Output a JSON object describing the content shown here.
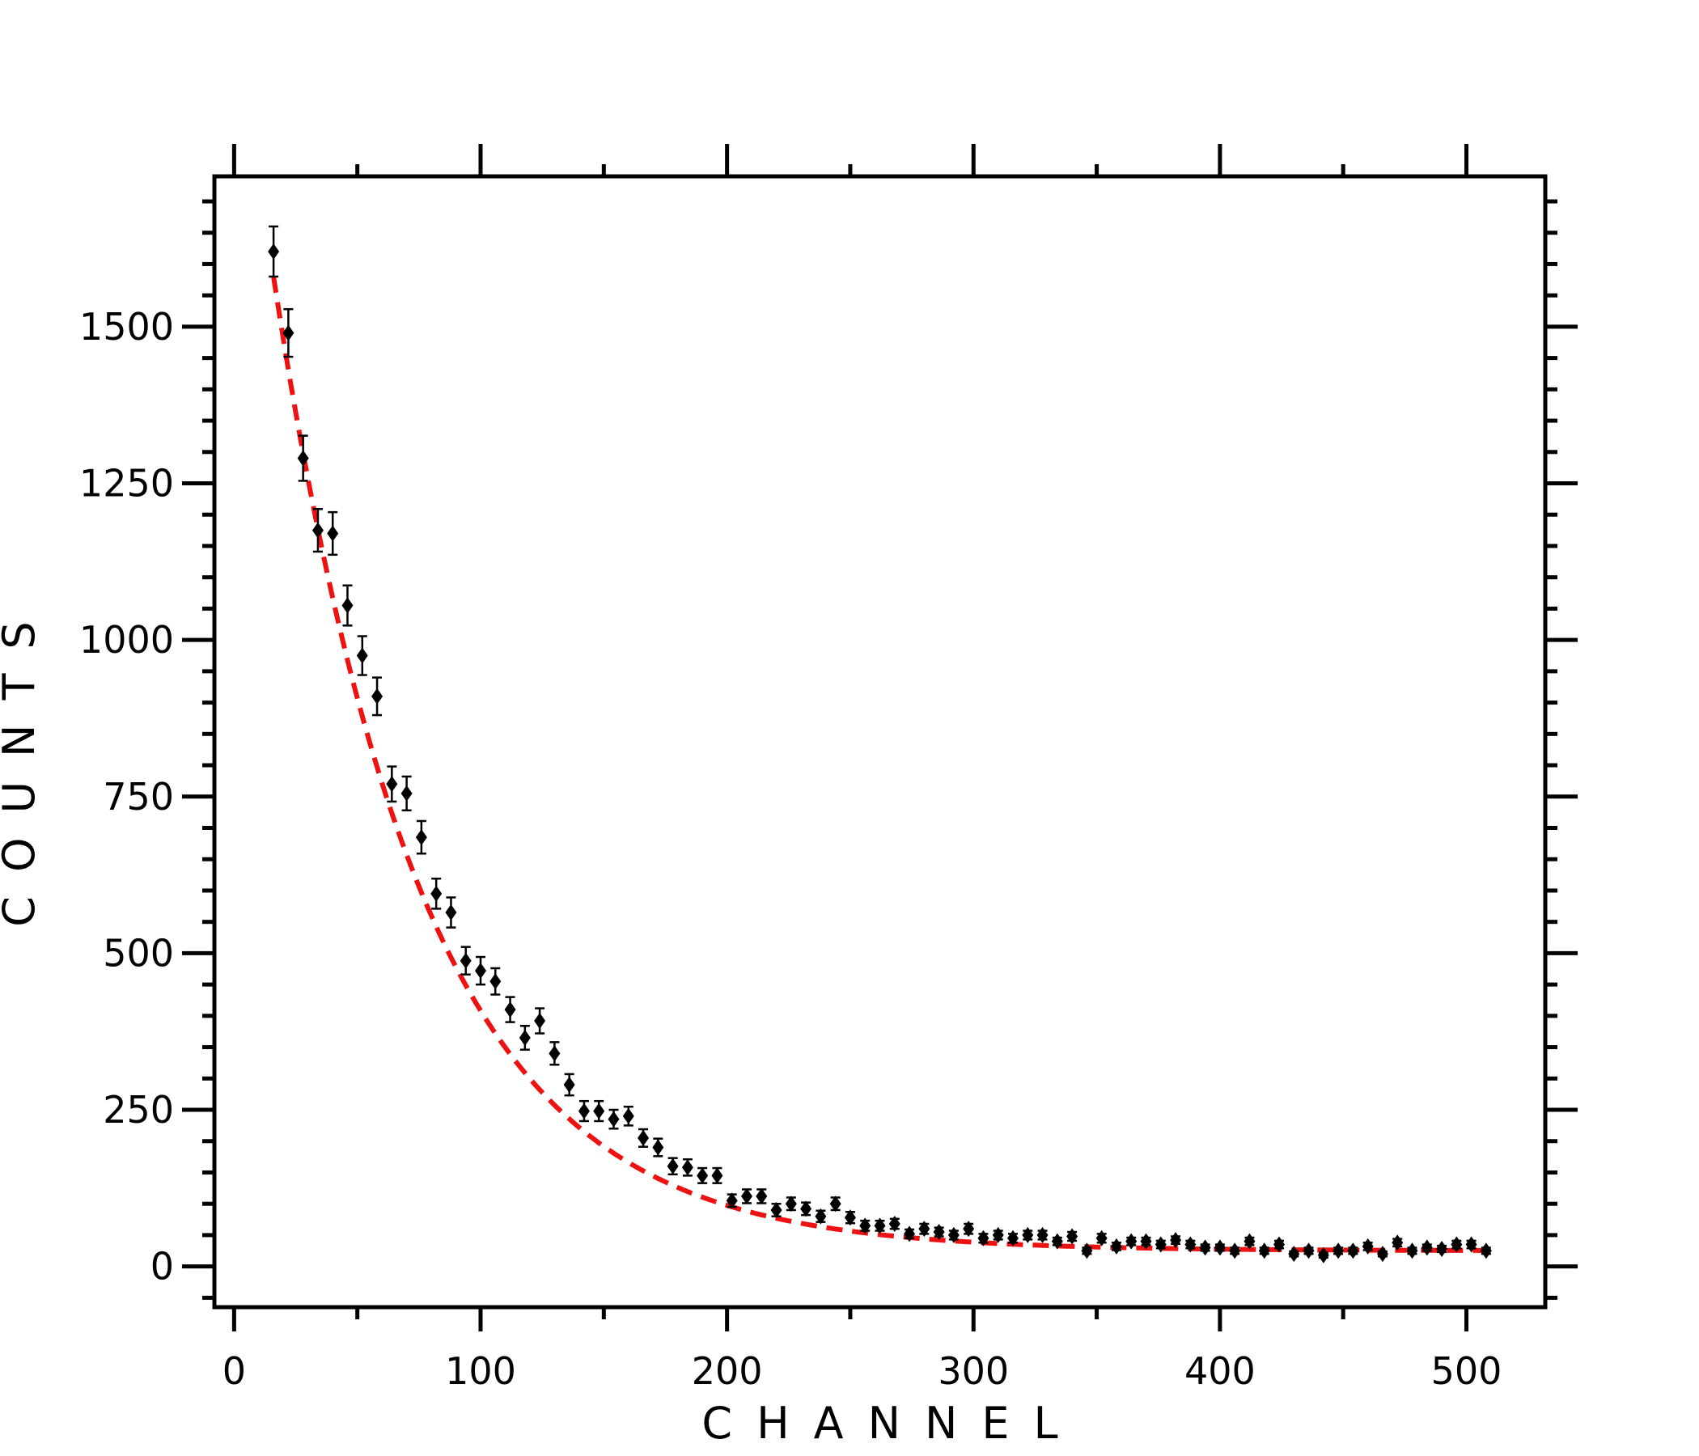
{
  "chart_data": {
    "type": "scatter",
    "xlabel": "CHANNEL",
    "ylabel": "COUNTS",
    "xlim": [
      -8,
      532
    ],
    "ylim": [
      -65,
      1740
    ],
    "x_ticks": [
      0,
      100,
      200,
      300,
      400,
      500
    ],
    "y_ticks": [
      0,
      250,
      500,
      750,
      1000,
      1250,
      1500
    ],
    "x_tick_labels": [
      "0",
      "100",
      "200",
      "300",
      "400",
      "500"
    ],
    "y_tick_labels": [
      "0",
      "250",
      "500",
      "750",
      "1000",
      "1250",
      "1500"
    ],
    "grid": false,
    "colors": {
      "points": "#000000",
      "fit": "#ee1111"
    },
    "series": [
      {
        "marker": "diamond",
        "error_bars": true,
        "x": [
          16,
          22,
          28,
          34,
          40,
          46,
          52,
          58,
          64,
          70,
          76,
          82,
          88,
          94,
          100,
          106,
          112,
          118,
          124,
          130,
          136,
          142,
          148,
          154,
          160,
          166,
          172,
          178,
          184,
          190,
          196,
          202,
          208,
          214,
          220,
          226,
          232,
          238,
          244,
          250,
          256,
          262,
          268,
          274,
          280,
          286,
          292,
          298,
          304,
          310,
          316,
          322,
          328,
          334,
          340,
          346,
          352,
          358,
          364,
          370,
          376,
          382,
          388,
          394,
          400,
          406,
          412,
          418,
          424,
          430,
          436,
          442,
          448,
          454,
          460,
          466,
          472,
          478,
          484,
          490,
          496,
          502,
          508
        ],
        "y": [
          1620,
          1490,
          1290,
          1175,
          1170,
          1055,
          975,
          910,
          770,
          755,
          685,
          595,
          565,
          488,
          472,
          455,
          410,
          365,
          392,
          340,
          290,
          248,
          248,
          235,
          240,
          205,
          190,
          160,
          158,
          145,
          145,
          105,
          112,
          112,
          90,
          100,
          92,
          80,
          100,
          78,
          65,
          65,
          68,
          52,
          60,
          55,
          50,
          60,
          45,
          50,
          45,
          50,
          50,
          40,
          48,
          25,
          45,
          32,
          40,
          40,
          35,
          42,
          35,
          30,
          30,
          25,
          40,
          25,
          35,
          20,
          25,
          18,
          25,
          25,
          32,
          20,
          38,
          25,
          30,
          28,
          35,
          35,
          25
        ],
        "err": [
          40,
          38,
          36,
          34,
          34,
          32,
          31,
          30,
          28,
          27,
          26,
          24,
          24,
          22,
          22,
          21,
          20,
          19,
          20,
          18,
          17,
          16,
          16,
          15,
          15,
          14,
          14,
          13,
          13,
          12,
          12,
          10,
          11,
          11,
          10,
          10,
          10,
          9,
          10,
          9,
          8,
          8,
          8,
          7,
          8,
          7,
          7,
          8,
          7,
          7,
          7,
          7,
          7,
          6,
          7,
          5,
          7,
          6,
          6,
          6,
          6,
          6,
          6,
          5,
          5,
          5,
          6,
          5,
          6,
          4,
          5,
          4,
          5,
          5,
          6,
          4,
          6,
          5,
          5,
          5,
          6,
          6,
          5
        ]
      }
    ],
    "fit": {
      "style": "dashed",
      "model": "exponential",
      "A": 2030,
      "tau": 60,
      "c": 25,
      "x_range": [
        16,
        508
      ]
    }
  }
}
